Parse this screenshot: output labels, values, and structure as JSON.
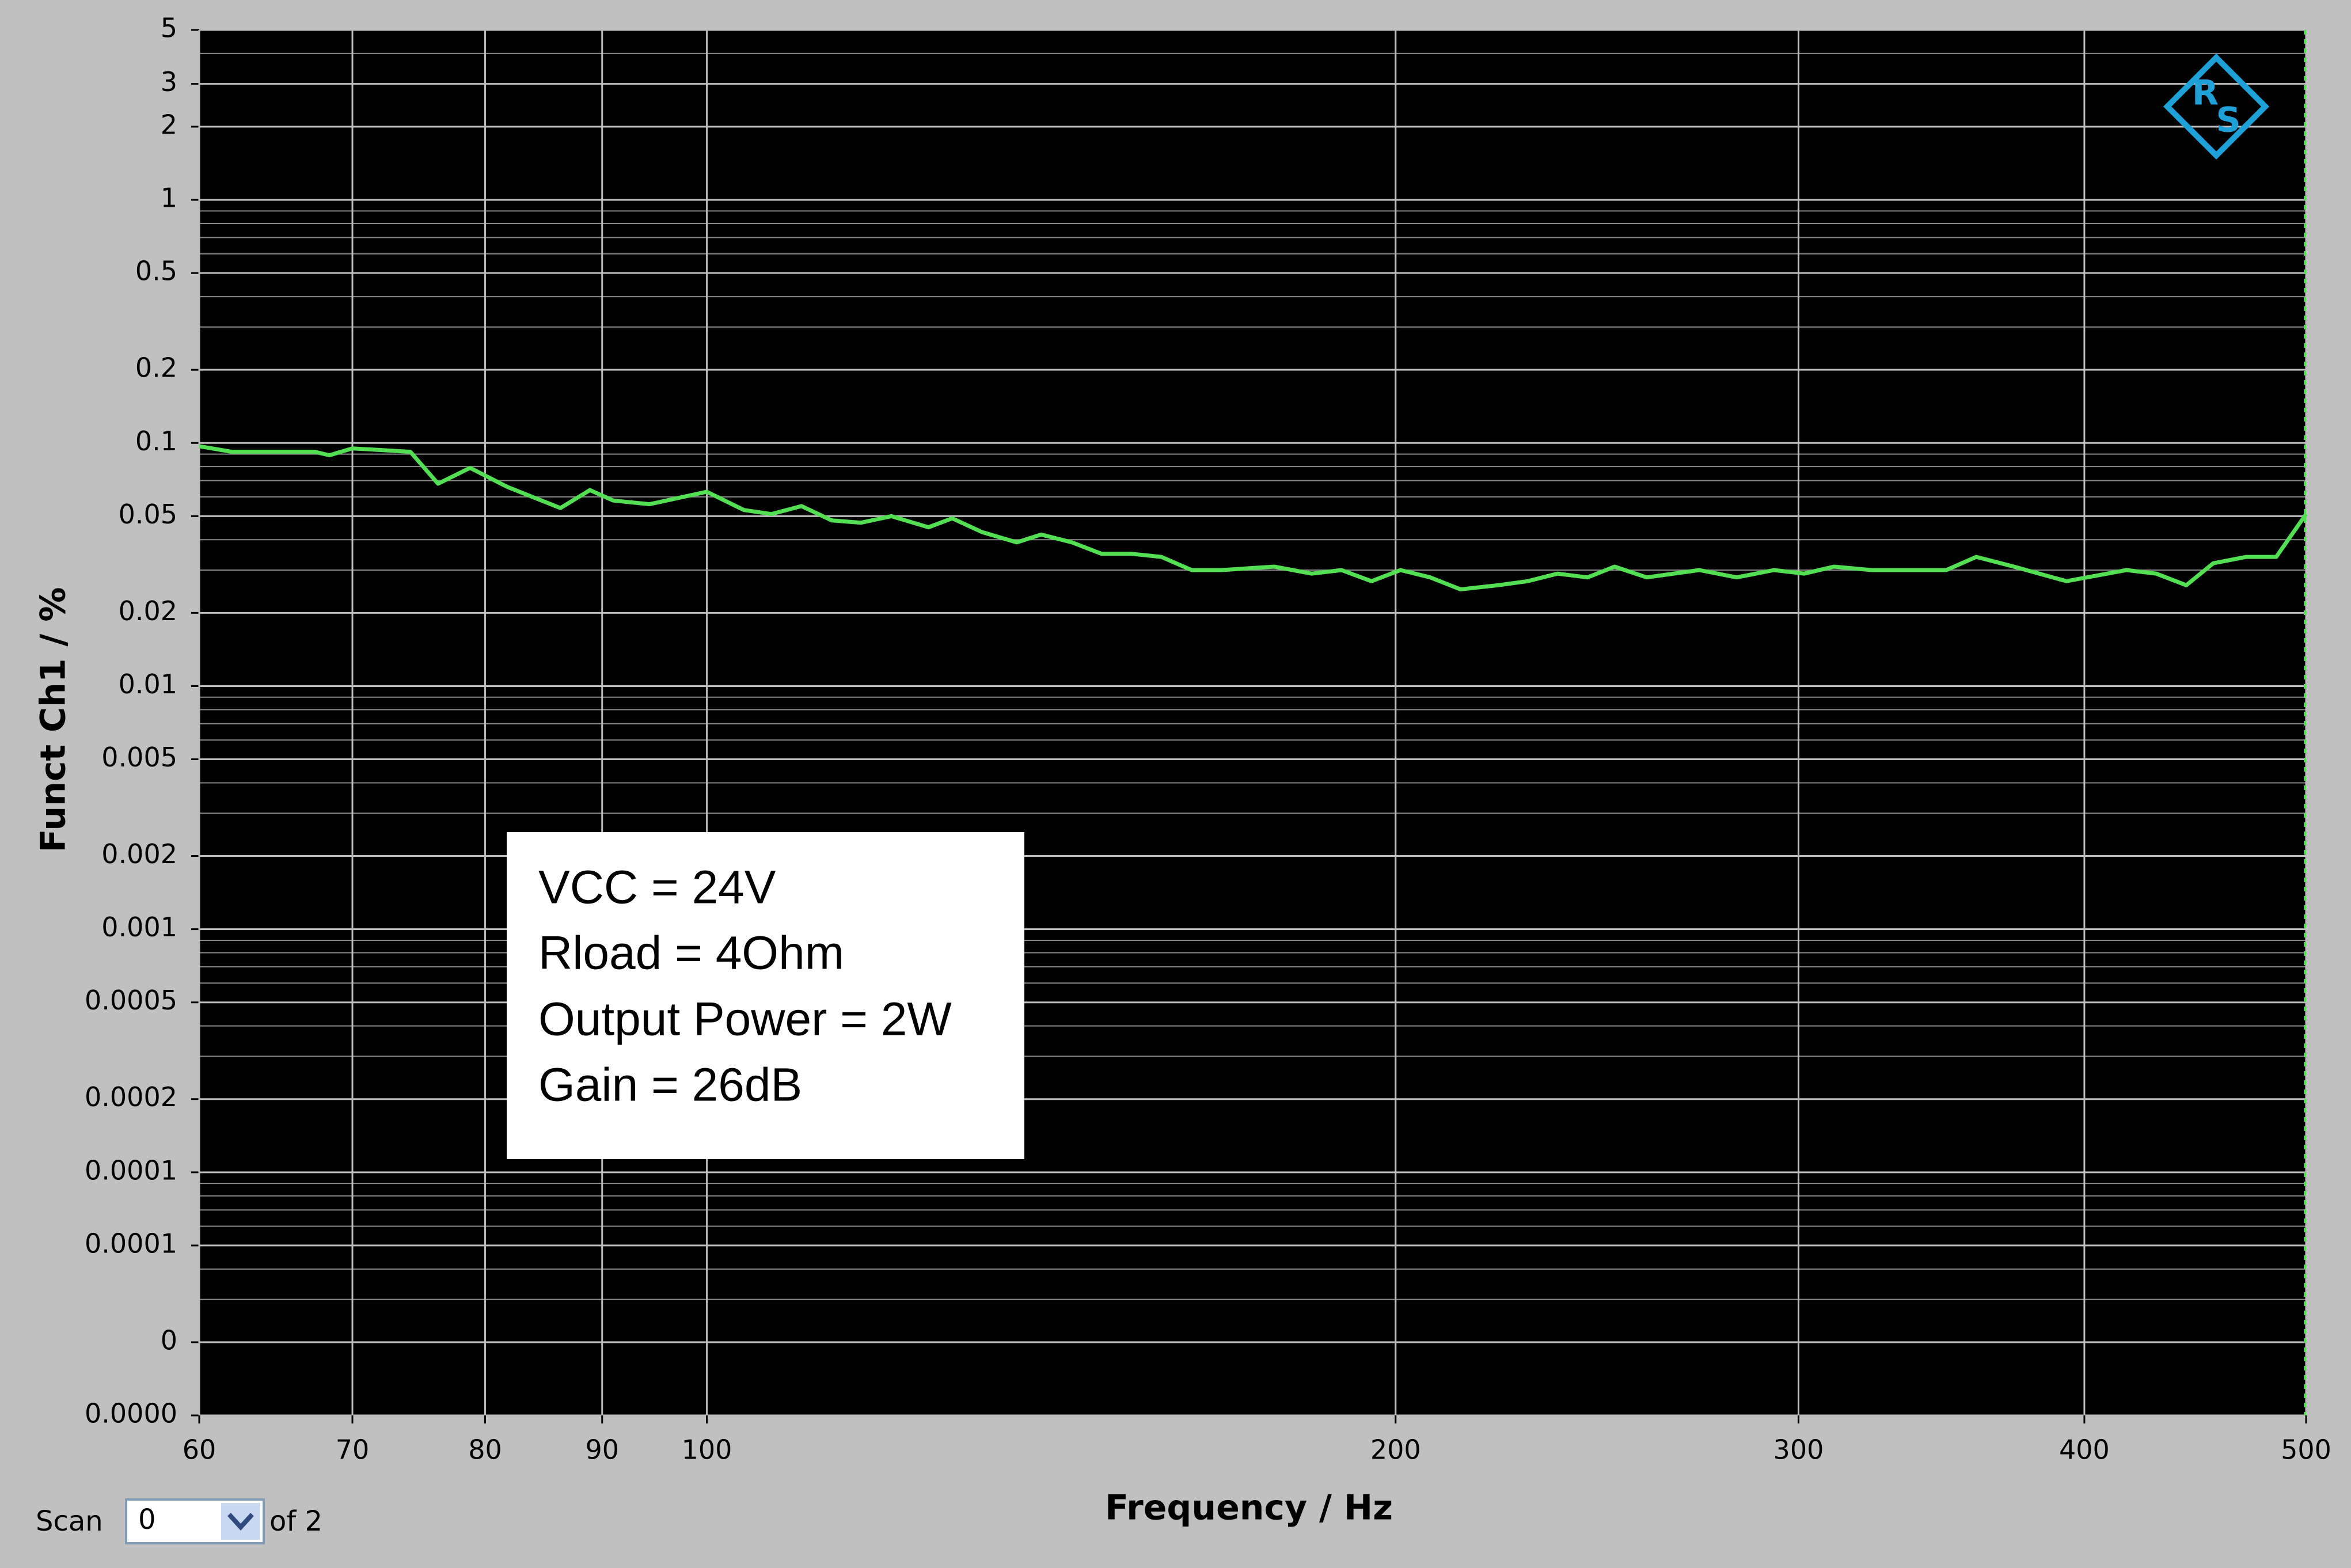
{
  "chart_data": {
    "type": "line",
    "y_label": "Funct Ch1 / %",
    "x_label": "Frequency / Hz",
    "log_x": true,
    "log_y": true,
    "grid": true,
    "minor_grid": true,
    "color": "#52e052",
    "x": [
      60,
      62,
      67.4,
      68.4,
      70,
      74.2,
      76.3,
      78.8,
      81.8,
      86.3,
      88.9,
      91,
      94.4,
      100,
      103.8,
      106.7,
      110,
      113.4,
      116.8,
      120.4,
      125,
      128,
      131.9,
      136.6,
      140,
      144.4,
      148.8,
      153.4,
      158,
      162.9,
      167.9,
      177,
      183.8,
      189.4,
      195.2,
      201,
      207.1,
      213.5,
      221.7,
      228.4,
      235.4,
      242.6,
      249.3,
      257.5,
      271.5,
      281.9,
      292.7,
      301.7,
      310.9,
      322.9,
      348.1,
      358.8,
      372.6,
      392.8,
      417.3,
      430,
      443.2,
      455.4,
      470.8,
      485.2,
      500
    ],
    "values": [
      0.097,
      0.092,
      0.092,
      0.089,
      0.095,
      0.092,
      0.068,
      0.079,
      0.066,
      0.054,
      0.064,
      0.058,
      0.056,
      0.063,
      0.053,
      0.051,
      0.055,
      0.048,
      0.047,
      0.05,
      0.045,
      0.049,
      0.043,
      0.039,
      0.042,
      0.039,
      0.035,
      0.035,
      0.034,
      0.03,
      0.03,
      0.031,
      0.029,
      0.03,
      0.027,
      0.03,
      0.028,
      0.025,
      0.026,
      0.027,
      0.029,
      0.028,
      0.031,
      0.028,
      0.03,
      0.028,
      0.03,
      0.029,
      0.031,
      0.03,
      0.03,
      0.034,
      0.031,
      0.027,
      0.03,
      0.029,
      0.026,
      0.032,
      0.034,
      0.034,
      0.051
    ],
    "xlim": [
      60,
      500
    ],
    "xticks": [
      60,
      70,
      80,
      90,
      100,
      200,
      300,
      400,
      500
    ],
    "ylim": [
      1e-05,
      5
    ],
    "yticks": [
      5,
      3,
      2,
      1,
      0.5,
      0.2,
      0.1,
      0.05,
      0.02,
      0.01,
      0.005,
      0.002,
      0.001,
      0.0005,
      0.0002,
      0.0001,
      {
        "value": 5e-05,
        "label": "0.0001"
      },
      {
        "value": 2e-05,
        "label": "0"
      },
      {
        "value": 1e-05,
        "label": "0.0000"
      }
    ],
    "annotation": [
      "VCC = 24V",
      "Rload = 4Ohm",
      "Output Power = 2W",
      "Gain = 26dB"
    ],
    "logo": [
      "R",
      "S"
    ]
  },
  "controls": {
    "scan_label": "Scan",
    "scan_value": "0",
    "scan_total": "of 2"
  }
}
